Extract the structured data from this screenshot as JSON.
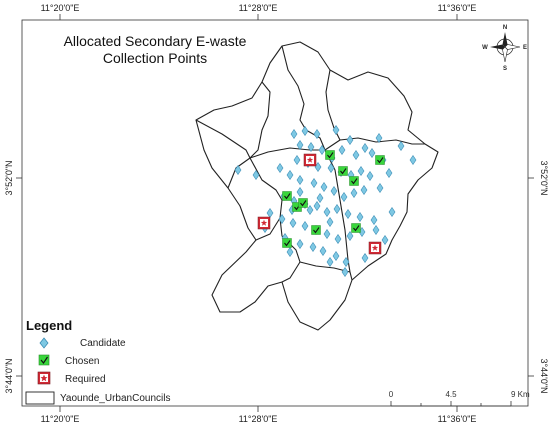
{
  "title": {
    "line1": "Allocated Secondary E-waste",
    "line2": "Collection Points"
  },
  "coordinates": {
    "top": [
      "11°20'0\"E",
      "11°28'0\"E",
      "11°36'0\"E"
    ],
    "bottom": [
      "11°20'0\"E",
      "11°28'0\"E",
      "11°36'0\"E"
    ],
    "left": [
      "3°52'0\"N",
      "3°44'0\"N"
    ],
    "right": [
      "3°52'0\"N",
      "3°44'0\"N"
    ]
  },
  "compass": {
    "n": "N",
    "s": "S",
    "e": "E",
    "w": "W"
  },
  "legend": {
    "title": "Legend",
    "items": [
      {
        "label": "Candidate",
        "symbol": "diamond-icon"
      },
      {
        "label": "Chosen",
        "symbol": "check-square-icon"
      },
      {
        "label": "Required",
        "symbol": "star-square-icon"
      },
      {
        "label": "Yaounde_UrbanCouncils",
        "symbol": "polygon-outline-icon"
      }
    ]
  },
  "scalebar": {
    "labels": [
      "0",
      "4.5",
      "9 Km"
    ]
  },
  "colors": {
    "candidate": "#7ec8e3",
    "candidate_stroke": "#3c8db5",
    "chosen": "#39d63c",
    "required": "#d12a35",
    "boundary": "#222222"
  },
  "map_points": {
    "candidate": [
      [
        294,
        134
      ],
      [
        305,
        131
      ],
      [
        317,
        134
      ],
      [
        336,
        130
      ],
      [
        350,
        140
      ],
      [
        379,
        138
      ],
      [
        401,
        146
      ],
      [
        413,
        160
      ],
      [
        383,
        160
      ],
      [
        300,
        145
      ],
      [
        311,
        147
      ],
      [
        322,
        150
      ],
      [
        332,
        158
      ],
      [
        342,
        150
      ],
      [
        356,
        155
      ],
      [
        365,
        148
      ],
      [
        372,
        153
      ],
      [
        297,
        160
      ],
      [
        308,
        163
      ],
      [
        318,
        167
      ],
      [
        331,
        168
      ],
      [
        341,
        172
      ],
      [
        351,
        175
      ],
      [
        361,
        171
      ],
      [
        370,
        176
      ],
      [
        389,
        173
      ],
      [
        280,
        168
      ],
      [
        290,
        175
      ],
      [
        300,
        180
      ],
      [
        314,
        183
      ],
      [
        324,
        187
      ],
      [
        334,
        191
      ],
      [
        344,
        197
      ],
      [
        354,
        193
      ],
      [
        364,
        190
      ],
      [
        380,
        188
      ],
      [
        284,
        196
      ],
      [
        294,
        201
      ],
      [
        305,
        204
      ],
      [
        317,
        206
      ],
      [
        327,
        212
      ],
      [
        337,
        209
      ],
      [
        348,
        214
      ],
      [
        360,
        217
      ],
      [
        374,
        220
      ],
      [
        392,
        212
      ],
      [
        270,
        213
      ],
      [
        282,
        219
      ],
      [
        293,
        223
      ],
      [
        305,
        226
      ],
      [
        316,
        230
      ],
      [
        327,
        234
      ],
      [
        338,
        239
      ],
      [
        350,
        236
      ],
      [
        362,
        232
      ],
      [
        376,
        230
      ],
      [
        265,
        228
      ],
      [
        285,
        238
      ],
      [
        300,
        244
      ],
      [
        313,
        247
      ],
      [
        323,
        251
      ],
      [
        336,
        256
      ],
      [
        346,
        262
      ],
      [
        365,
        258
      ],
      [
        385,
        240
      ],
      [
        290,
        252
      ],
      [
        330,
        262
      ],
      [
        345,
        272
      ],
      [
        238,
        170
      ],
      [
        256,
        175
      ],
      [
        292,
        210
      ],
      [
        300,
        192
      ],
      [
        310,
        210
      ],
      [
        320,
        198
      ],
      [
        330,
        222
      ]
    ],
    "chosen": [
      [
        287,
        196
      ],
      [
        297,
        207
      ],
      [
        303,
        203
      ],
      [
        316,
        230
      ],
      [
        287,
        243
      ],
      [
        343,
        171
      ],
      [
        354,
        181
      ],
      [
        380,
        160
      ],
      [
        356,
        228
      ],
      [
        330,
        155
      ]
    ],
    "required": [
      [
        310,
        160
      ],
      [
        264,
        223
      ],
      [
        375,
        248
      ]
    ]
  }
}
